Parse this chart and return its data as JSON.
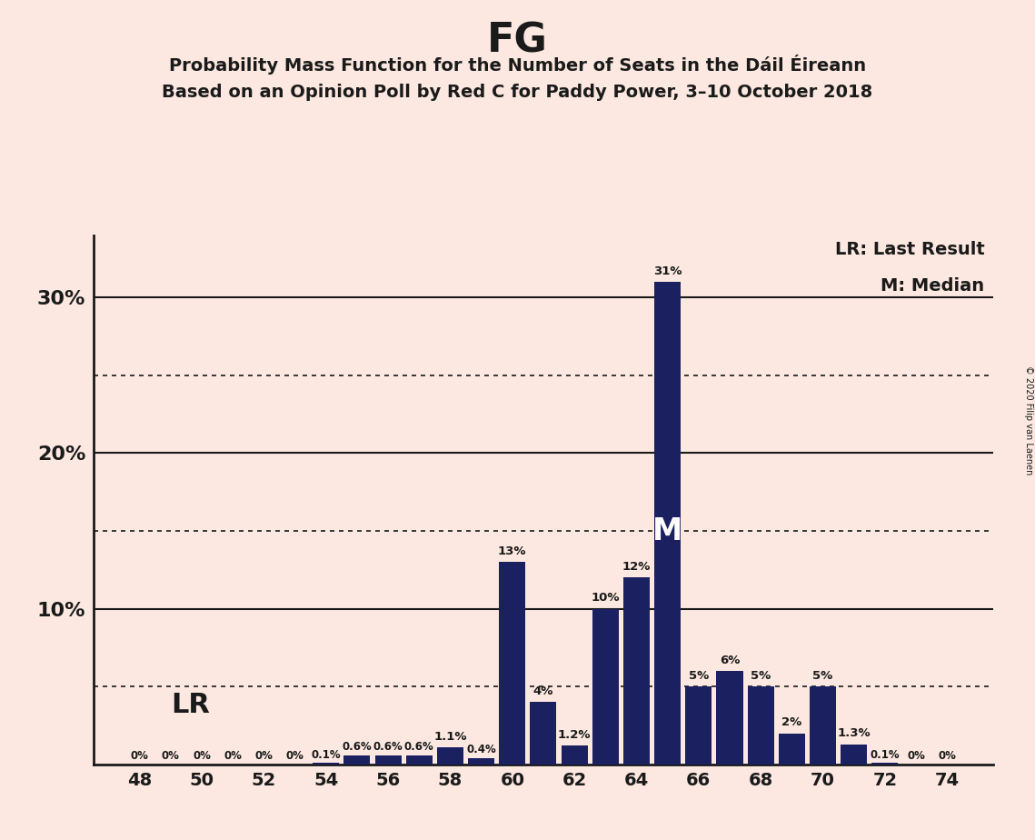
{
  "title": "FG",
  "subtitle1": "Probability Mass Function for the Number of Seats in the Dáil Éireann",
  "subtitle2": "Based on an Opinion Poll by Red C for Paddy Power, 3–10 October 2018",
  "copyright": "© 2020 Filip van Laenen",
  "seats": [
    48,
    49,
    50,
    51,
    52,
    53,
    54,
    55,
    56,
    57,
    58,
    59,
    60,
    61,
    62,
    63,
    64,
    65,
    66,
    67,
    68,
    69,
    70,
    71,
    72,
    73,
    74
  ],
  "probabilities": [
    0.0,
    0.0,
    0.0,
    0.0,
    0.0,
    0.0,
    0.1,
    0.6,
    0.6,
    0.6,
    1.1,
    0.4,
    13.0,
    4.0,
    1.2,
    10.0,
    12.0,
    31.0,
    5.0,
    6.0,
    5.0,
    2.0,
    5.0,
    1.3,
    0.1,
    0.0,
    0.0
  ],
  "labels": [
    "0%",
    "0%",
    "0%",
    "0%",
    "0%",
    "0%",
    "0.1%",
    "0.6%",
    "0.6%",
    "0.6%",
    "1.1%",
    "0.4%",
    "13%",
    "4%",
    "1.2%",
    "10%",
    "12%",
    "31%",
    "5%",
    "6%",
    "5%",
    "2%",
    "5%",
    "1.3%",
    "0.1%",
    "0%",
    "0%"
  ],
  "bar_color": "#1a2060",
  "bg_color": "#fce8e0",
  "axis_line_color": "#1a1a1a",
  "text_color": "#1a1a1a",
  "median_seat": 65,
  "dotted_lines": [
    5,
    15,
    25
  ],
  "solid_lines": [
    10,
    20,
    30
  ],
  "legend_lr": "LR: Last Result",
  "legend_m": "M: Median",
  "lr_label": "LR",
  "m_label": "M"
}
